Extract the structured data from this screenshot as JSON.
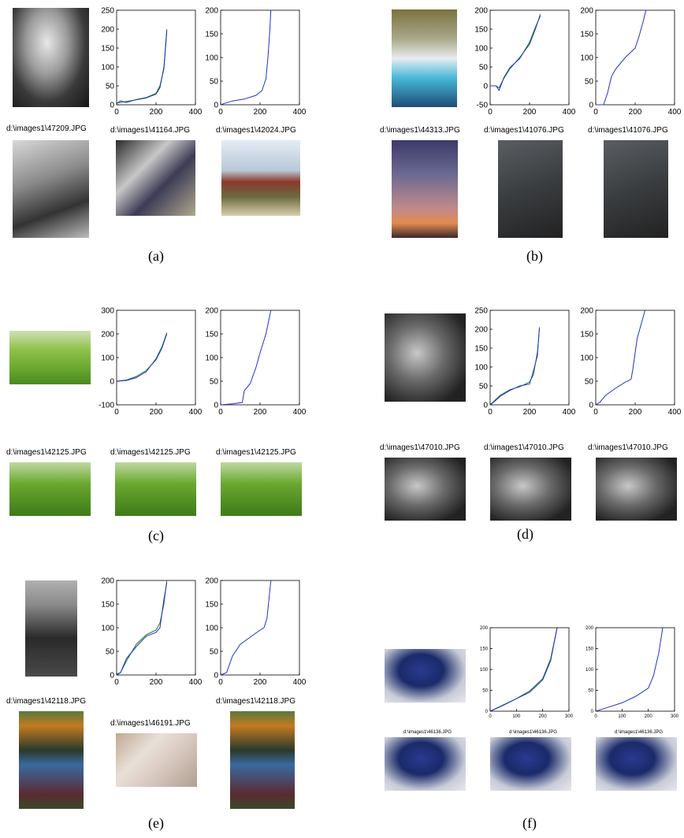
{
  "figure": {
    "panels": [
      {
        "caption": "(a)",
        "query_label": "d:\\images1\\47209.JPG",
        "result_labels": [
          "d:\\images1\\41164.JPG",
          "d:\\images1\\42024.JPG"
        ],
        "chart_data": [
          {
            "type": "line",
            "xlim": [
              0,
              400
            ],
            "ylim": [
              0,
              250
            ],
            "xticks": [
              "0",
              "200",
              "400"
            ],
            "yticks": [
              "0",
              "50",
              "100",
              "150",
              "200",
              "250"
            ],
            "series": [
              {
                "color": "#1a7a1a",
                "x": [
                  0,
                  20,
                  50,
                  100,
                  150,
                  200,
                  220,
                  240,
                  255
                ],
                "y": [
                  5,
                  6,
                  9,
                  13,
                  18,
                  28,
                  45,
                  100,
                  200
                ]
              },
              {
                "color": "#1f33cc",
                "x": [
                  0,
                  20,
                  50,
                  100,
                  150,
                  200,
                  220,
                  240,
                  255
                ],
                "y": [
                  3,
                  10,
                  6,
                  14,
                  19,
                  30,
                  50,
                  95,
                  195
                ]
              }
            ]
          },
          {
            "type": "line",
            "xlim": [
              0,
              400
            ],
            "ylim": [
              0,
              200
            ],
            "xticks": [
              "0",
              "200",
              "400"
            ],
            "yticks": [
              "0",
              "50",
              "100",
              "150",
              "200"
            ],
            "series": [
              {
                "color": "#1f33cc",
                "x": [
                  0,
                  20,
                  60,
                  120,
                  180,
                  210,
                  230,
                  240,
                  250,
                  255
                ],
                "y": [
                  0,
                  3,
                  8,
                  12,
                  20,
                  30,
                  55,
                  100,
                  160,
                  200
                ]
              }
            ]
          }
        ]
      },
      {
        "caption": "(b)",
        "query_label": "d:\\images1\\44313.JPG",
        "result_labels": [
          "d:\\images1\\41076.JPG",
          "d:\\images1\\41076.JPG"
        ],
        "chart_data": [
          {
            "type": "line",
            "xlim": [
              0,
              400
            ],
            "ylim": [
              -50,
              200
            ],
            "xticks": [
              "0",
              "200",
              "400"
            ],
            "yticks": [
              "-50",
              "0",
              "50",
              "100",
              "150",
              "200"
            ],
            "series": [
              {
                "color": "#1a7a1a",
                "x": [
                  0,
                  30,
                  45,
                  70,
                  100,
                  150,
                  200,
                  230,
                  255
                ],
                "y": [
                  0,
                  0,
                  -5,
                  20,
                  45,
                  75,
                  110,
                  150,
                  190
                ]
              },
              {
                "color": "#1f33cc",
                "x": [
                  0,
                  30,
                  45,
                  70,
                  100,
                  150,
                  200,
                  230,
                  255
                ],
                "y": [
                  0,
                  0,
                  -12,
                  22,
                  48,
                  72,
                  115,
                  155,
                  185
                ]
              }
            ]
          },
          {
            "type": "line",
            "xlim": [
              0,
              400
            ],
            "ylim": [
              0,
              200
            ],
            "xticks": [
              "0",
              "200",
              "400"
            ],
            "yticks": [
              "0",
              "50",
              "100",
              "150",
              "200"
            ],
            "series": [
              {
                "color": "#1f33cc",
                "x": [
                  0,
                  40,
                  60,
                  80,
                  100,
                  150,
                  200,
                  220,
                  240,
                  255
                ],
                "y": [
                  0,
                  0,
                  25,
                  60,
                  75,
                  100,
                  120,
                  145,
                  175,
                  200
                ]
              }
            ]
          }
        ]
      },
      {
        "caption": "(c)",
        "result_labels": [
          "d:\\images1\\42125.JPG",
          "d:\\images1\\42125.JPG",
          "d:\\images1\\42125.JPG"
        ],
        "chart_data": [
          {
            "type": "line",
            "xlim": [
              0,
              400
            ],
            "ylim": [
              -100,
              300
            ],
            "xticks": [
              "0",
              "200",
              "400"
            ],
            "yticks": [
              "-100",
              "0",
              "100",
              "200",
              "300"
            ],
            "series": [
              {
                "color": "#1a7a1a",
                "x": [
                  0,
                  50,
                  100,
                  150,
                  200,
                  230,
                  255
                ],
                "y": [
                  0,
                  5,
                  20,
                  45,
                  90,
                  140,
                  200
                ]
              },
              {
                "color": "#1f33cc",
                "x": [
                  0,
                  50,
                  100,
                  120,
                  150,
                  200,
                  230,
                  255
                ],
                "y": [
                  0,
                  3,
                  15,
                  25,
                  40,
                  95,
                  145,
                  205
                ]
              }
            ]
          },
          {
            "type": "line",
            "xlim": [
              0,
              400
            ],
            "ylim": [
              0,
              200
            ],
            "xticks": [
              "0",
              "200",
              "400"
            ],
            "yticks": [
              "0",
              "50",
              "100",
              "150",
              "200"
            ],
            "series": [
              {
                "color": "#1f33cc",
                "x": [
                  0,
                  60,
                  110,
                  120,
                  150,
                  180,
                  200,
                  230,
                  255
                ],
                "y": [
                  0,
                  2,
                  5,
                  30,
                  45,
                  80,
                  110,
                  150,
                  200
                ]
              }
            ]
          }
        ]
      },
      {
        "caption": "(d)",
        "result_labels": [
          "d:\\images1\\47010.JPG",
          "d:\\images1\\47010.JPG",
          "d:\\images1\\47010.JPG"
        ],
        "chart_data": [
          {
            "type": "line",
            "xlim": [
              0,
              400
            ],
            "ylim": [
              0,
              250
            ],
            "xticks": [
              "0",
              "200",
              "400"
            ],
            "yticks": [
              "0",
              "50",
              "100",
              "150",
              "200",
              "250"
            ],
            "series": [
              {
                "color": "#1a7a1a",
                "x": [
                  0,
                  20,
                  50,
                  100,
                  150,
                  200,
                  220,
                  240,
                  250
                ],
                "y": [
                  0,
                  10,
                  25,
                  40,
                  48,
                  60,
                  80,
                  140,
                  200
                ]
              },
              {
                "color": "#1f33cc",
                "x": [
                  0,
                  20,
                  50,
                  100,
                  150,
                  200,
                  220,
                  240,
                  250
                ],
                "y": [
                  0,
                  8,
                  22,
                  38,
                  50,
                  55,
                  90,
                  130,
                  205
                ]
              }
            ]
          },
          {
            "type": "line",
            "xlim": [
              0,
              400
            ],
            "ylim": [
              0,
              200
            ],
            "xticks": [
              "0",
              "200",
              "400"
            ],
            "yticks": [
              "0",
              "50",
              "100",
              "150",
              "200"
            ],
            "series": [
              {
                "color": "#1f33cc",
                "x": [
                  0,
                  20,
                  50,
                  100,
                  150,
                  170,
                  180,
                  190,
                  210,
                  230,
                  250
                ],
                "y": [
                  0,
                  5,
                  20,
                  35,
                  48,
                  52,
                  55,
                  80,
                  140,
                  170,
                  200
                ]
              }
            ]
          }
        ]
      },
      {
        "caption": "(e)",
        "query_label": "d:\\images1\\42118.JPG",
        "result_labels": [
          "d:\\images1\\46191.JPG",
          "d:\\images1\\42118.JPG"
        ],
        "chart_data": [
          {
            "type": "line",
            "xlim": [
              0,
              400
            ],
            "ylim": [
              0,
              200
            ],
            "xticks": [
              "0",
              "200",
              "400"
            ],
            "yticks": [
              "0",
              "50",
              "100",
              "150",
              "200"
            ],
            "series": [
              {
                "color": "#1a7a1a",
                "x": [
                  0,
                  20,
                  50,
                  100,
                  150,
                  200,
                  220,
                  240,
                  255
                ],
                "y": [
                  2,
                  5,
                  30,
                  65,
                  85,
                  95,
                  110,
                  150,
                  200
                ]
              },
              {
                "color": "#1f33cc",
                "x": [
                  0,
                  20,
                  50,
                  100,
                  150,
                  200,
                  220,
                  240,
                  255
                ],
                "y": [
                  0,
                  5,
                  35,
                  60,
                  82,
                  90,
                  100,
                  160,
                  195
                ]
              }
            ]
          },
          {
            "type": "line",
            "xlim": [
              0,
              400
            ],
            "ylim": [
              0,
              200
            ],
            "xticks": [
              "0",
              "200",
              "400"
            ],
            "yticks": [
              "0",
              "50",
              "100",
              "150",
              "200"
            ],
            "series": [
              {
                "color": "#1f33cc",
                "x": [
                  0,
                  30,
                  60,
                  100,
                  150,
                  200,
                  220,
                  235,
                  245,
                  255
                ],
                "y": [
                  0,
                  5,
                  40,
                  65,
                  80,
                  95,
                  100,
                  120,
                  160,
                  200
                ]
              }
            ]
          }
        ]
      },
      {
        "caption": "(f)",
        "result_labels": [
          "d:\\images1\\46136.JPG",
          "d:\\images1\\46136.JPG",
          "d:\\images1\\46136.JPG"
        ],
        "chart_data": [
          {
            "type": "line",
            "xlim": [
              0,
              300
            ],
            "ylim": [
              0,
              200
            ],
            "xticks": [
              "0",
              "100",
              "200",
              "300"
            ],
            "yticks": [
              "0",
              "50",
              "100",
              "150",
              "200"
            ],
            "series": [
              {
                "color": "#1a7a1a",
                "x": [
                  0,
                  50,
                  100,
                  150,
                  200,
                  230,
                  255
                ],
                "y": [
                  0,
                  15,
                  30,
                  45,
                  75,
                  120,
                  200
                ]
              },
              {
                "color": "#1f33cc",
                "x": [
                  0,
                  50,
                  100,
                  150,
                  200,
                  230,
                  255
                ],
                "y": [
                  0,
                  14,
                  30,
                  48,
                  78,
                  125,
                  200
                ]
              }
            ]
          },
          {
            "type": "line",
            "xlim": [
              0,
              300
            ],
            "ylim": [
              0,
              200
            ],
            "xticks": [
              "0",
              "100",
              "200",
              "300"
            ],
            "yticks": [
              "0",
              "50",
              "100",
              "150",
              "200"
            ],
            "series": [
              {
                "color": "#1f33cc",
                "x": [
                  0,
                  50,
                  100,
                  150,
                  200,
                  220,
                  240,
                  255
                ],
                "y": [
                  0,
                  10,
                  20,
                  35,
                  55,
                  85,
                  140,
                  200
                ]
              }
            ]
          }
        ]
      }
    ]
  }
}
